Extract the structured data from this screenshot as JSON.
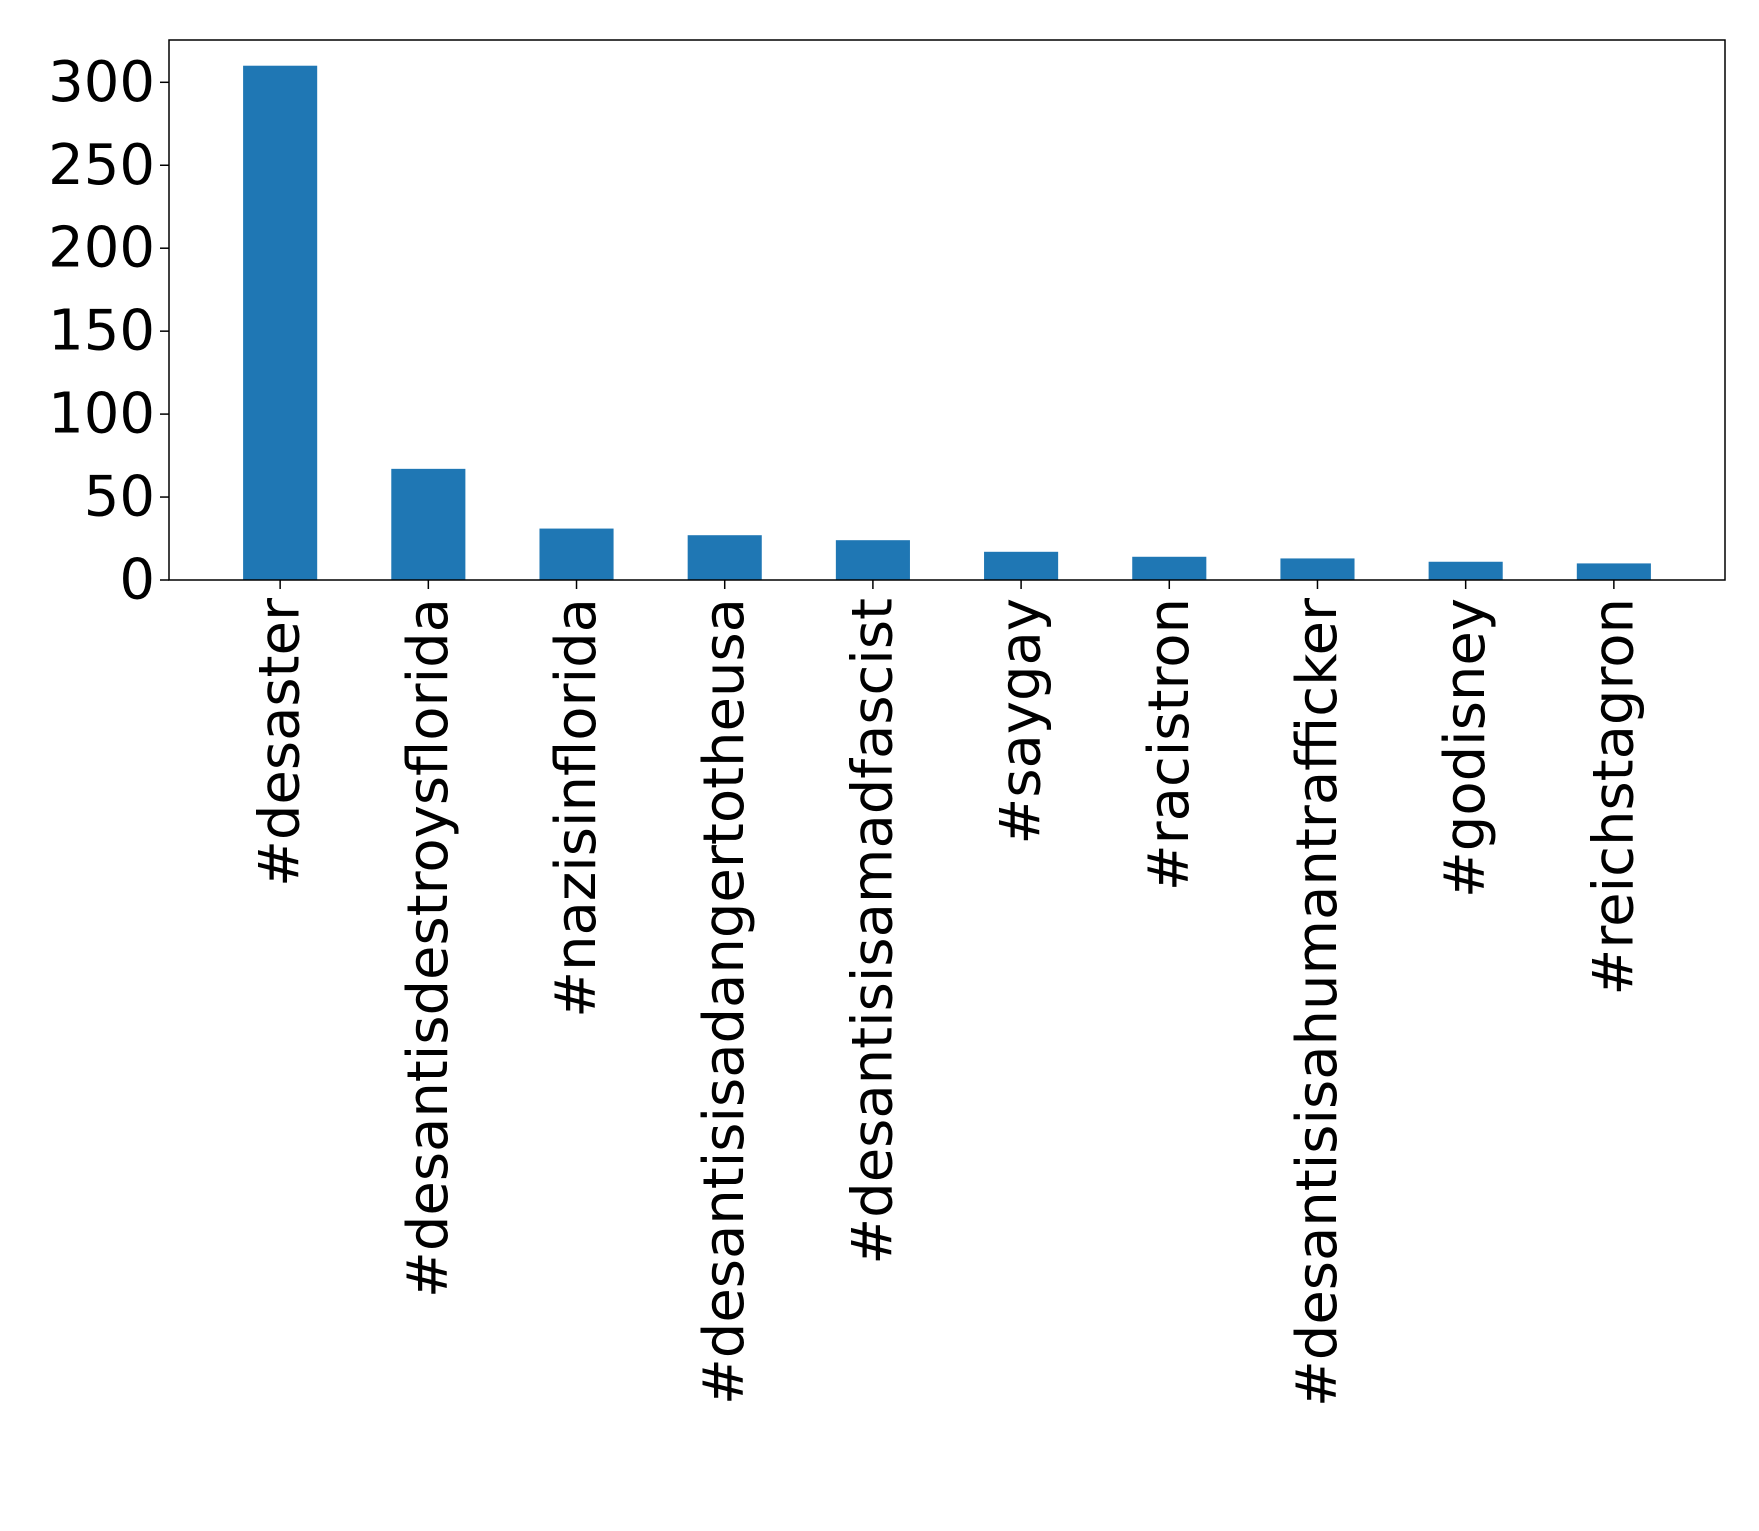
{
  "chart_data": {
    "type": "bar",
    "title": "",
    "xlabel": "",
    "ylabel": "",
    "categories": [
      "#desaster",
      "#desantisdestroysflorida",
      "#nazisinflorida",
      "#desantisisadangertotheusa",
      "#desantisisamadfascist",
      "#saygay",
      "#racistron",
      "#desantisisahumantrafficker",
      "#godisney",
      "#reichstagron"
    ],
    "values": [
      310,
      67,
      31,
      27,
      24,
      17,
      14,
      13,
      11,
      10
    ],
    "ylim": [
      0,
      325.5
    ],
    "yticks": [
      0,
      50,
      100,
      150,
      200,
      250,
      300
    ],
    "ytick_labels": [
      "0",
      "50",
      "100",
      "150",
      "200",
      "250",
      "300"
    ],
    "bar_color": "#1f77b4",
    "grid": false,
    "legend": "none"
  }
}
